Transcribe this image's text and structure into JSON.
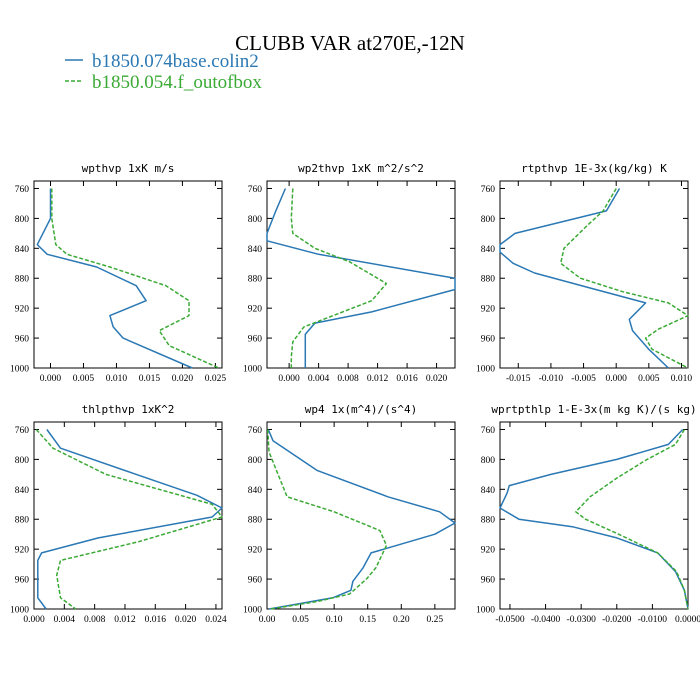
{
  "figure": {
    "title": "CLUBB VAR at270E,-12N",
    "legend": [
      {
        "label": "b1850.074base.colin2",
        "color": "#2a78b4",
        "dash": "solid"
      },
      {
        "label": "b1850.054.f_outofbox",
        "color": "#3aaa35",
        "dash": "dashed"
      }
    ]
  },
  "chart_data": [
    {
      "type": "line",
      "title": "wpthvp  1xK m/s",
      "xlim": [
        -0.0025,
        0.026
      ],
      "xticks": [
        0.0,
        0.005,
        0.01,
        0.015,
        0.02,
        0.025
      ],
      "xtick_labels": [
        "0.000",
        "0.005",
        "0.010",
        "0.015",
        "0.020",
        "0.025"
      ],
      "ylim": [
        1000,
        750
      ],
      "yticks": [
        760,
        800,
        840,
        880,
        920,
        960,
        1000
      ],
      "series": [
        {
          "name": "b1850.074base.colin2",
          "x": [
            0.0,
            0.0,
            -0.002,
            -0.0005,
            0.007,
            0.013,
            0.0145,
            0.009,
            0.0095,
            0.011,
            0.0215
          ],
          "y": [
            760,
            800,
            835,
            848,
            865,
            890,
            910,
            930,
            945,
            960,
            1000
          ]
        },
        {
          "name": "b1850.054.f_outofbox",
          "x": [
            0.0002,
            0.0002,
            0.0008,
            0.0025,
            0.009,
            0.0175,
            0.021,
            0.021,
            0.0165,
            0.018,
            0.0255
          ],
          "y": [
            760,
            800,
            835,
            848,
            865,
            890,
            910,
            930,
            950,
            970,
            1000
          ]
        }
      ]
    },
    {
      "type": "line",
      "title": "wp2thvp  1xK m^2/s^2",
      "xlim": [
        -0.003,
        0.0225
      ],
      "xticks": [
        0.0,
        0.004,
        0.008,
        0.012,
        0.016,
        0.02
      ],
      "xtick_labels": [
        "0.000",
        "0.004",
        "0.008",
        "0.012",
        "0.016",
        "0.020"
      ],
      "ylim": [
        1000,
        750
      ],
      "yticks": [
        760,
        800,
        840,
        880,
        920,
        960,
        1000
      ],
      "series": [
        {
          "name": "b1850.074base.colin2",
          "x": [
            -0.0005,
            -0.0018,
            -0.003,
            -0.003,
            0.004,
            0.0225,
            0.0225,
            0.0112,
            0.0035,
            0.0022,
            0.0022,
            0.0022
          ],
          "y": [
            760,
            790,
            820,
            830,
            848,
            880,
            895,
            925,
            940,
            955,
            975,
            1000
          ]
        },
        {
          "name": "b1850.054.f_outofbox",
          "x": [
            0.0005,
            0.0003,
            0.0005,
            0.0035,
            0.0082,
            0.0132,
            0.0112,
            0.002,
            0.0005,
            0.0003,
            0.0003
          ],
          "y": [
            760,
            800,
            820,
            840,
            858,
            887,
            910,
            945,
            965,
            985,
            1000
          ]
        }
      ]
    },
    {
      "type": "line",
      "title": "rtpthvp  1E-3x(kg/kg) K",
      "xlim": [
        -0.0178,
        0.011
      ],
      "xticks": [
        -0.015,
        -0.01,
        -0.005,
        0.0,
        0.005,
        0.01
      ],
      "xtick_labels": [
        "-0.015",
        "-0.010",
        "-0.005",
        "0.000",
        "0.005",
        "0.010"
      ],
      "ylim": [
        1000,
        750
      ],
      "yticks": [
        760,
        800,
        840,
        880,
        920,
        960,
        1000
      ],
      "series": [
        {
          "name": "b1850.074base.colin2",
          "x": [
            0.0005,
            -0.0015,
            -0.0085,
            -0.0155,
            -0.0178,
            -0.0178,
            -0.0158,
            -0.0125,
            -0.004,
            0.0045,
            0.002,
            0.0025,
            0.005,
            0.008
          ],
          "y": [
            760,
            790,
            805,
            820,
            835,
            845,
            860,
            873,
            893,
            913,
            935,
            950,
            975,
            1000
          ]
        },
        {
          "name": "b1850.054.f_outofbox",
          "x": [
            0.0,
            -0.002,
            -0.0045,
            -0.008,
            -0.0085,
            -0.0055,
            0.001,
            0.008,
            0.011,
            0.0065,
            0.0045,
            0.0055,
            0.011
          ],
          "y": [
            760,
            790,
            810,
            840,
            860,
            880,
            898,
            913,
            930,
            948,
            960,
            975,
            1000
          ]
        }
      ]
    },
    {
      "type": "line",
      "title": "thlpthvp  1xK^2",
      "xlim": [
        0.0,
        0.0248
      ],
      "xticks": [
        0.0,
        0.004,
        0.008,
        0.012,
        0.016,
        0.02,
        0.024
      ],
      "xtick_labels": [
        "0.000",
        "0.004",
        "0.008",
        "0.012",
        "0.016",
        "0.020",
        "0.024"
      ],
      "ylim": [
        1000,
        750
      ],
      "yticks": [
        760,
        800,
        840,
        880,
        920,
        960,
        1000
      ],
      "series": [
        {
          "name": "b1850.074base.colin2",
          "x": [
            0.0017,
            0.0035,
            0.0135,
            0.0215,
            0.0248,
            0.0235,
            0.0085,
            0.001,
            0.0005,
            0.0005,
            0.0005,
            0.0016
          ],
          "y": [
            760,
            785,
            820,
            848,
            865,
            877,
            905,
            925,
            935,
            960,
            985,
            1000
          ]
        },
        {
          "name": "b1850.054.f_outofbox",
          "x": [
            0.0003,
            0.0025,
            0.0095,
            0.0235,
            0.0248,
            0.0138,
            0.0035,
            0.003,
            0.0035,
            0.0055
          ],
          "y": [
            760,
            785,
            820,
            860,
            877,
            910,
            935,
            955,
            985,
            1000
          ]
        }
      ]
    },
    {
      "type": "line",
      "title": "wp4  1x(m^4)/(s^4)",
      "xlim": [
        0.0,
        0.28
      ],
      "xticks": [
        0.0,
        0.05,
        0.1,
        0.15,
        0.2,
        0.25
      ],
      "xtick_labels": [
        "0.00",
        "0.05",
        "0.10",
        "0.15",
        "0.20",
        "0.25"
      ],
      "ylim": [
        1000,
        750
      ],
      "yticks": [
        760,
        800,
        840,
        880,
        920,
        960,
        1000
      ],
      "series": [
        {
          "name": "b1850.074base.colin2",
          "x": [
            0.002,
            0.009,
            0.075,
            0.18,
            0.257,
            0.28,
            0.25,
            0.155,
            0.143,
            0.128,
            0.125,
            0.098,
            0.035,
            0.003
          ],
          "y": [
            760,
            775,
            815,
            850,
            870,
            885,
            900,
            925,
            945,
            963,
            975,
            985,
            995,
            1000
          ]
        },
        {
          "name": "b1850.054.f_outofbox",
          "x": [
            0.001,
            0.003,
            0.03,
            0.1,
            0.168,
            0.178,
            0.162,
            0.148,
            0.123,
            0.075,
            0.005
          ],
          "y": [
            760,
            790,
            850,
            870,
            895,
            915,
            945,
            960,
            980,
            990,
            1000
          ]
        }
      ]
    },
    {
      "type": "line",
      "title": "wprtpthlp  1-E-3x(m kg K)/(s kg)",
      "xlim": [
        -0.0528,
        0.0
      ],
      "xticks": [
        -0.05,
        -0.04,
        -0.03,
        -0.02,
        -0.01,
        0.0
      ],
      "xtick_labels": [
        "-0.0500",
        "-0.0400",
        "-0.0300",
        "-0.0200",
        "-0.0100",
        "0.0000"
      ],
      "ylim": [
        1000,
        750
      ],
      "yticks": [
        760,
        800,
        840,
        880,
        920,
        960,
        1000
      ],
      "series": [
        {
          "name": "b1850.074base.colin2",
          "x": [
            -0.0015,
            -0.0055,
            -0.02,
            -0.0385,
            -0.0502,
            -0.0508,
            -0.0528,
            -0.0475,
            -0.0325,
            -0.02,
            -0.0085,
            -0.0035,
            -0.001,
            0.0
          ],
          "y": [
            760,
            780,
            800,
            820,
            835,
            845,
            865,
            880,
            890,
            905,
            925,
            950,
            975,
            1000
          ]
        },
        {
          "name": "b1850.054.f_outofbox",
          "x": [
            -0.001,
            -0.0035,
            -0.0115,
            -0.02,
            -0.0275,
            -0.0315,
            -0.0288,
            -0.0195,
            -0.0085,
            -0.0032,
            -0.001,
            0.0
          ],
          "y": [
            760,
            780,
            800,
            825,
            850,
            870,
            880,
            900,
            925,
            950,
            975,
            1000
          ]
        }
      ]
    }
  ]
}
